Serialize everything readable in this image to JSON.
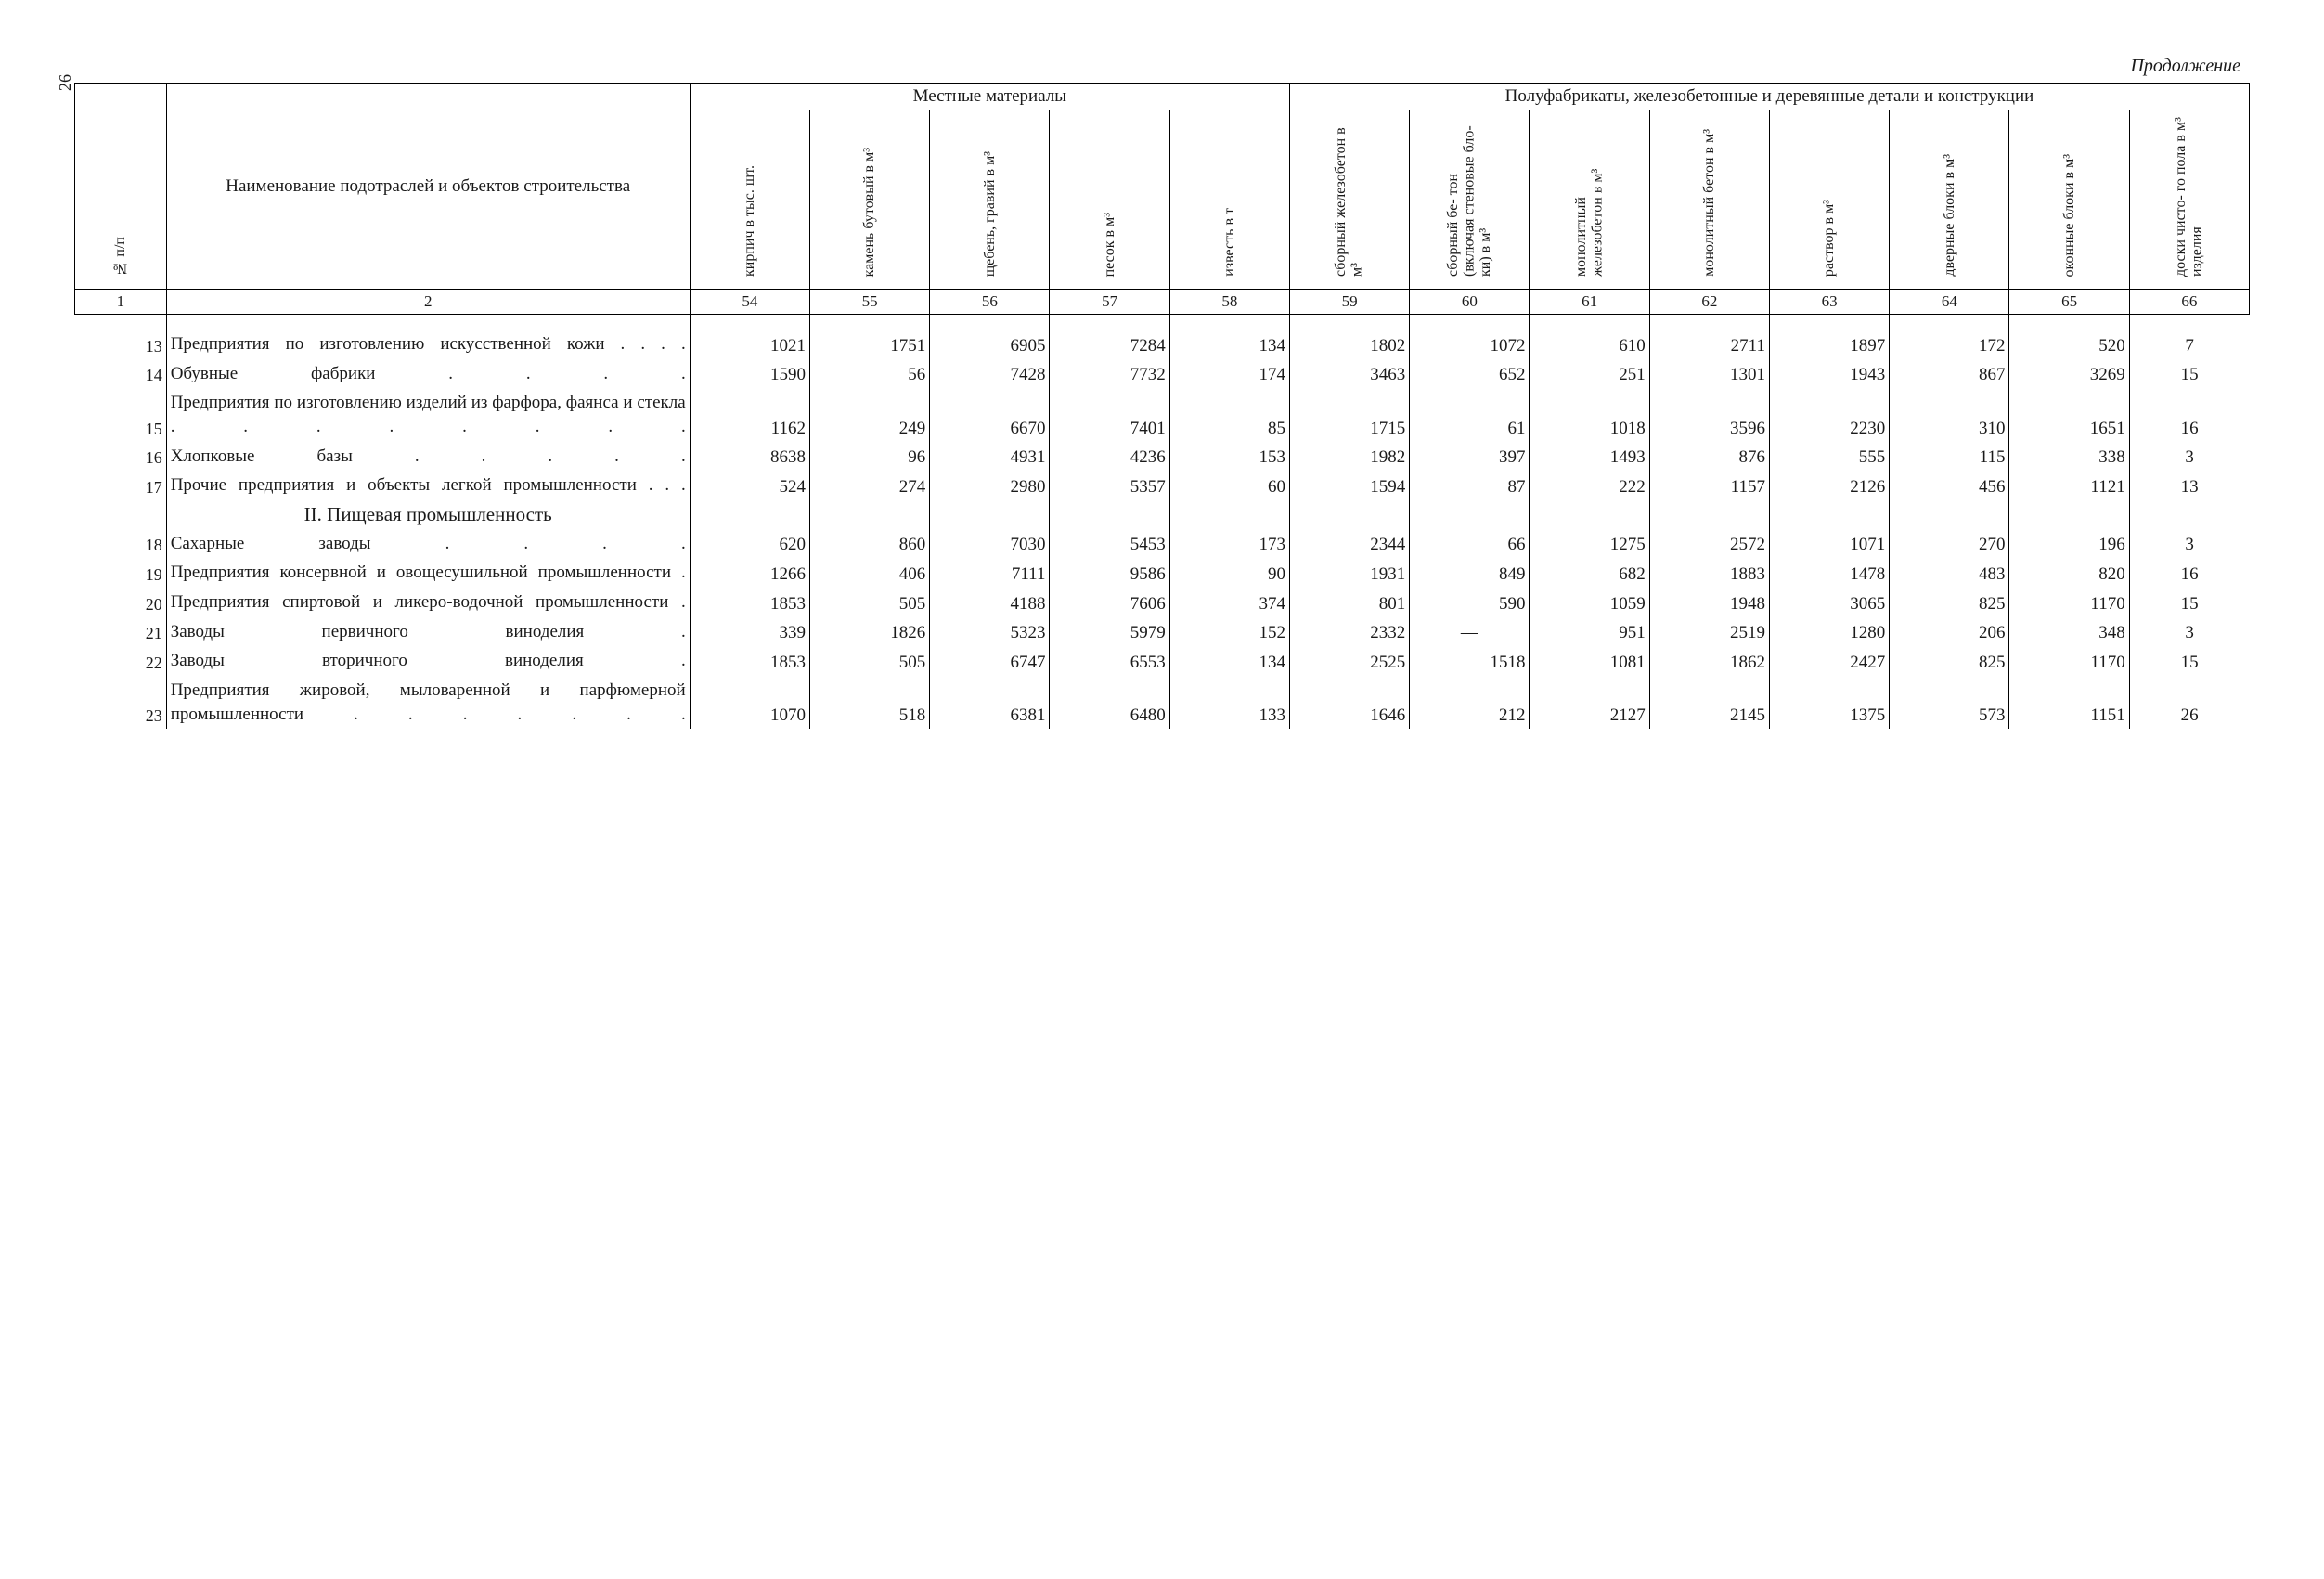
{
  "page_number": "26",
  "continuation": "Продолжение",
  "header": {
    "group_local": "Местные материалы",
    "group_semi": "Полуфабрикаты, железобетонные и деревянные детали и конструкции",
    "row_label": "№ п/п",
    "name_label": "Наименование подотраслей и объектов строительства",
    "cols": {
      "c54": "кирпич\nв тыс. шт.",
      "c55": "камень\nбутовый в м³",
      "c56": "щебень,\nгравий в м³",
      "c57": "песок в м³",
      "c58": "известь в т",
      "c59": "сборный\nжелезобетон\nв м³",
      "c60": "сборный бе-\nтон (включая\nстеновые бло-\nки) в м³",
      "c61": "монолитный\nжелезобетон\nв м³",
      "c62": "монолитный\nбетон в м³",
      "c63": "раствор в м³",
      "c64": "дверные\nблоки в м³",
      "c65": "оконные\nблоки в м³",
      "c66": "доски чисто-\nго пола в м³\nизделия"
    },
    "nums": {
      "n1": "1",
      "n2": "2",
      "n54": "54",
      "n55": "55",
      "n56": "56",
      "n57": "57",
      "n58": "58",
      "n59": "59",
      "n60": "60",
      "n61": "61",
      "n62": "62",
      "n63": "63",
      "n64": "64",
      "n65": "65",
      "n66": "66"
    }
  },
  "section2": "II. Пищевая промышленность",
  "rows": {
    "r13": {
      "idx": "13",
      "name": "Предприятия по изготовлению искусственной кожи  .  .  .  .",
      "c54": "1021",
      "c55": "1751",
      "c56": "6905",
      "c57": "7284",
      "c58": "134",
      "c59": "1802",
      "c60": "1072",
      "c61": "610",
      "c62": "2711",
      "c63": "1897",
      "c64": "172",
      "c65": "520",
      "c66": "7"
    },
    "r14": {
      "idx": "14",
      "name": "Обувные фабрики  .  .  .  .",
      "c54": "1590",
      "c55": "56",
      "c56": "7428",
      "c57": "7732",
      "c58": "174",
      "c59": "3463",
      "c60": "652",
      "c61": "251",
      "c62": "1301",
      "c63": "1943",
      "c64": "867",
      "c65": "3269",
      "c66": "15"
    },
    "r15": {
      "idx": "15",
      "name": "Предприятия по изготовлению изделий из фарфора, фаянса и стекла  .  .  .  .  .  .  .  .",
      "c54": "1162",
      "c55": "249",
      "c56": "6670",
      "c57": "7401",
      "c58": "85",
      "c59": "1715",
      "c60": "61",
      "c61": "1018",
      "c62": "3596",
      "c63": "2230",
      "c64": "310",
      "c65": "1651",
      "c66": "16"
    },
    "r16": {
      "idx": "16",
      "name": "Хлопковые базы  .  .  .  .  .",
      "c54": "8638",
      "c55": "96",
      "c56": "4931",
      "c57": "4236",
      "c58": "153",
      "c59": "1982",
      "c60": "397",
      "c61": "1493",
      "c62": "876",
      "c63": "555",
      "c64": "115",
      "c65": "338",
      "c66": "3"
    },
    "r17": {
      "idx": "17",
      "name": "Прочие предприятия и объекты легкой промышленности  .  .  .",
      "c54": "524",
      "c55": "274",
      "c56": "2980",
      "c57": "5357",
      "c58": "60",
      "c59": "1594",
      "c60": "87",
      "c61": "222",
      "c62": "1157",
      "c63": "2126",
      "c64": "456",
      "c65": "1121",
      "c66": "13"
    },
    "r18": {
      "idx": "18",
      "name": "Сахарные заводы  .  .  .  .",
      "c54": "620",
      "c55": "860",
      "c56": "7030",
      "c57": "5453",
      "c58": "173",
      "c59": "2344",
      "c60": "66",
      "c61": "1275",
      "c62": "2572",
      "c63": "1071",
      "c64": "270",
      "c65": "196",
      "c66": "3"
    },
    "r19": {
      "idx": "19",
      "name": "Предприятия консервной и овощесушильной промышленности  .",
      "c54": "1266",
      "c55": "406",
      "c56": "7111",
      "c57": "9586",
      "c58": "90",
      "c59": "1931",
      "c60": "849",
      "c61": "682",
      "c62": "1883",
      "c63": "1478",
      "c64": "483",
      "c65": "820",
      "c66": "16"
    },
    "r20": {
      "idx": "20",
      "name": "Предприятия спиртовой и ликеро-водочной промышленности  .",
      "c54": "1853",
      "c55": "505",
      "c56": "4188",
      "c57": "7606",
      "c58": "374",
      "c59": "801",
      "c60": "590",
      "c61": "1059",
      "c62": "1948",
      "c63": "3065",
      "c64": "825",
      "c65": "1170",
      "c66": "15"
    },
    "r21": {
      "idx": "21",
      "name": "Заводы первичного виноделия  .",
      "c54": "339",
      "c55": "1826",
      "c56": "5323",
      "c57": "5979",
      "c58": "152",
      "c59": "2332",
      "c60": "—",
      "c61": "951",
      "c62": "2519",
      "c63": "1280",
      "c64": "206",
      "c65": "348",
      "c66": "3"
    },
    "r22": {
      "idx": "22",
      "name": "Заводы вторичного виноделия  .",
      "c54": "1853",
      "c55": "505",
      "c56": "6747",
      "c57": "6553",
      "c58": "134",
      "c59": "2525",
      "c60": "1518",
      "c61": "1081",
      "c62": "1862",
      "c63": "2427",
      "c64": "825",
      "c65": "1170",
      "c66": "15"
    },
    "r23": {
      "idx": "23",
      "name": "Предприятия жировой, мыловаренной и парфюмерной промышленности  .  .  .  .  .  .  .",
      "c54": "1070",
      "c55": "518",
      "c56": "6381",
      "c57": "6480",
      "c58": "133",
      "c59": "1646",
      "c60": "212",
      "c61": "2127",
      "c62": "2145",
      "c63": "1375",
      "c64": "573",
      "c65": "1151",
      "c66": "26"
    }
  }
}
